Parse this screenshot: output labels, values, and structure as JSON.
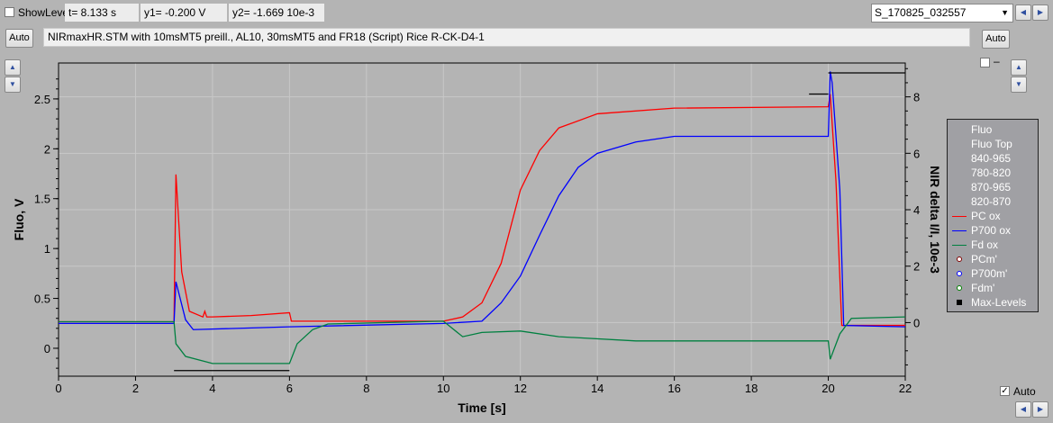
{
  "toolbar": {
    "show_level_label": "ShowLevel",
    "show_level_checked": false,
    "t_readout": "t= 8.133 s",
    "y1_readout": "y1= -0.200 V",
    "y2_readout": "y2= -1.669 10e-3",
    "file_select": "S_170825_032557",
    "auto_left": "Auto",
    "auto_right": "Auto",
    "title_field": "NIRmaxHR.STM with 10msMT5 preill., AL10, 30msMT5 and FR18 (Script) Rice R-CK-D4-1",
    "right_check_label": "–",
    "auto_check_label": "Auto",
    "auto_checked": true
  },
  "chart_data": {
    "type": "line",
    "xlabel": "Time [s]",
    "ylabel": "Fluo, V",
    "y2label": "NIR delta I/I, 10e-3",
    "xlim": [
      0,
      22
    ],
    "ylim": [
      -0.28,
      2.86
    ],
    "y2lim": [
      -1.9,
      9.2
    ],
    "xticks": [
      0,
      2,
      4,
      6,
      8,
      10,
      12,
      14,
      16,
      18,
      20,
      22
    ],
    "yticks": [
      0,
      0.5,
      1,
      1.5,
      2,
      2.5
    ],
    "yticklabels": [
      "0",
      "0.5",
      "1",
      "1.5",
      "2",
      "2.5"
    ],
    "y2ticks": [
      0,
      2,
      4,
      6,
      8
    ],
    "grid": true,
    "legend_placement": "right-outside",
    "legend": [
      {
        "label": "Fluo"
      },
      {
        "label": "Fluo Top"
      },
      {
        "label": "840-965"
      },
      {
        "label": "780-820"
      },
      {
        "label": "870-965"
      },
      {
        "label": "820-870"
      },
      {
        "label": "PC ox",
        "kind": "line",
        "color": "#ff0000"
      },
      {
        "label": "P700 ox",
        "kind": "line",
        "color": "#0000ff"
      },
      {
        "label": "Fd ox",
        "kind": "line",
        "color": "#008040"
      },
      {
        "label": "PCm'",
        "kind": "dot",
        "color": "#800000"
      },
      {
        "label": "P700m'",
        "kind": "dot",
        "color": "#0000ff"
      },
      {
        "label": "Fdm'",
        "kind": "dot",
        "color": "#008000"
      },
      {
        "label": "Max-Levels",
        "kind": "square",
        "color": "#000000"
      }
    ],
    "series": [
      {
        "name": "PC ox",
        "axis": "y2",
        "color": "#ff0000",
        "x": [
          0,
          3,
          3.05,
          3.2,
          3.4,
          3.75,
          3.8,
          3.85,
          4,
          5,
          6,
          6.05,
          8,
          10,
          10.5,
          11,
          11.5,
          12,
          12.5,
          13,
          14,
          16,
          20,
          20.05,
          20.2,
          20.35,
          22
        ],
        "y": [
          0.03,
          0.03,
          5.25,
          1.8,
          0.4,
          0.2,
          0.4,
          0.2,
          0.2,
          0.25,
          0.35,
          0.05,
          0.05,
          0.05,
          0.2,
          0.7,
          2.1,
          4.7,
          6.1,
          6.9,
          7.4,
          7.6,
          7.65,
          8.1,
          5,
          -0.1,
          -0.1
        ]
      },
      {
        "name": "P700 ox",
        "axis": "y2",
        "color": "#0000ff",
        "x": [
          0,
          3,
          3.05,
          3.3,
          3.5,
          6,
          10,
          11,
          11.5,
          12,
          12.5,
          13,
          13.5,
          14,
          15,
          16,
          20,
          20.05,
          20.1,
          20.3,
          20.4,
          22
        ],
        "y": [
          -0.03,
          -0.03,
          1.45,
          0.1,
          -0.25,
          -0.15,
          -0.03,
          0.05,
          0.7,
          1.65,
          3.1,
          4.5,
          5.5,
          6.0,
          6.4,
          6.6,
          6.6,
          8.9,
          8.5,
          4.7,
          -0.1,
          -0.15
        ]
      },
      {
        "name": "Fd ox",
        "axis": "y2",
        "color": "#008040",
        "x": [
          0,
          3,
          3.05,
          3.3,
          4,
          6,
          6.2,
          6.6,
          7,
          10,
          10.5,
          11,
          12,
          13,
          15,
          20,
          20.05,
          20.3,
          20.6,
          22
        ],
        "y": [
          0.03,
          0.03,
          -0.75,
          -1.2,
          -1.45,
          -1.45,
          -0.75,
          -0.25,
          -0.05,
          0.05,
          -0.5,
          -0.35,
          -0.3,
          -0.5,
          -0.65,
          -0.65,
          -1.3,
          -0.4,
          0.15,
          0.2
        ]
      }
    ],
    "max_levels": [
      {
        "axis": "y2",
        "x": [
          3,
          6
        ],
        "y": -1.7
      },
      {
        "axis": "y2",
        "x": [
          19.5,
          20
        ],
        "y": 8.1
      },
      {
        "axis": "y2",
        "x": [
          20,
          22
        ],
        "y": 8.85
      }
    ]
  }
}
